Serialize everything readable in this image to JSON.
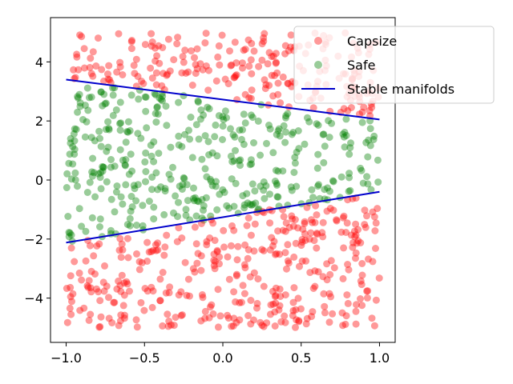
{
  "chart_data": {
    "type": "scatter",
    "title": "",
    "xlabel": "",
    "ylabel": "",
    "xlim": [
      -1.1,
      1.1
    ],
    "ylim": [
      -5.5,
      5.5
    ],
    "xticks": [
      -1.0,
      -0.5,
      0.0,
      0.5,
      1.0
    ],
    "xtick_labels": [
      "−1.0",
      "−0.5",
      "0.0",
      "0.5",
      "1.0"
    ],
    "yticks": [
      -4,
      -2,
      0,
      2,
      4
    ],
    "ytick_labels": [
      "−4",
      "−2",
      "0",
      "2",
      "4"
    ],
    "grid": false,
    "legend_position": "top-right",
    "point_count": 1000,
    "x_range": [
      -1.0,
      1.0
    ],
    "y_range": [
      -5.0,
      5.0
    ],
    "series": [
      {
        "name": "Capsize",
        "kind": "scatter",
        "color": "#ff0000",
        "alpha": 0.4,
        "region": "outside stable manifolds (y above upper line or below lower line)"
      },
      {
        "name": "Safe",
        "kind": "scatter",
        "color": "#008000",
        "alpha": 0.4,
        "region": "between stable manifolds"
      },
      {
        "name": "Stable manifolds",
        "kind": "line",
        "color": "#0000cc",
        "lines": [
          {
            "x": [
              -1.0,
              1.0
            ],
            "y": [
              3.4,
              2.05
            ]
          },
          {
            "x": [
              -1.0,
              1.0
            ],
            "y": [
              -2.12,
              -0.4
            ]
          }
        ]
      }
    ]
  }
}
